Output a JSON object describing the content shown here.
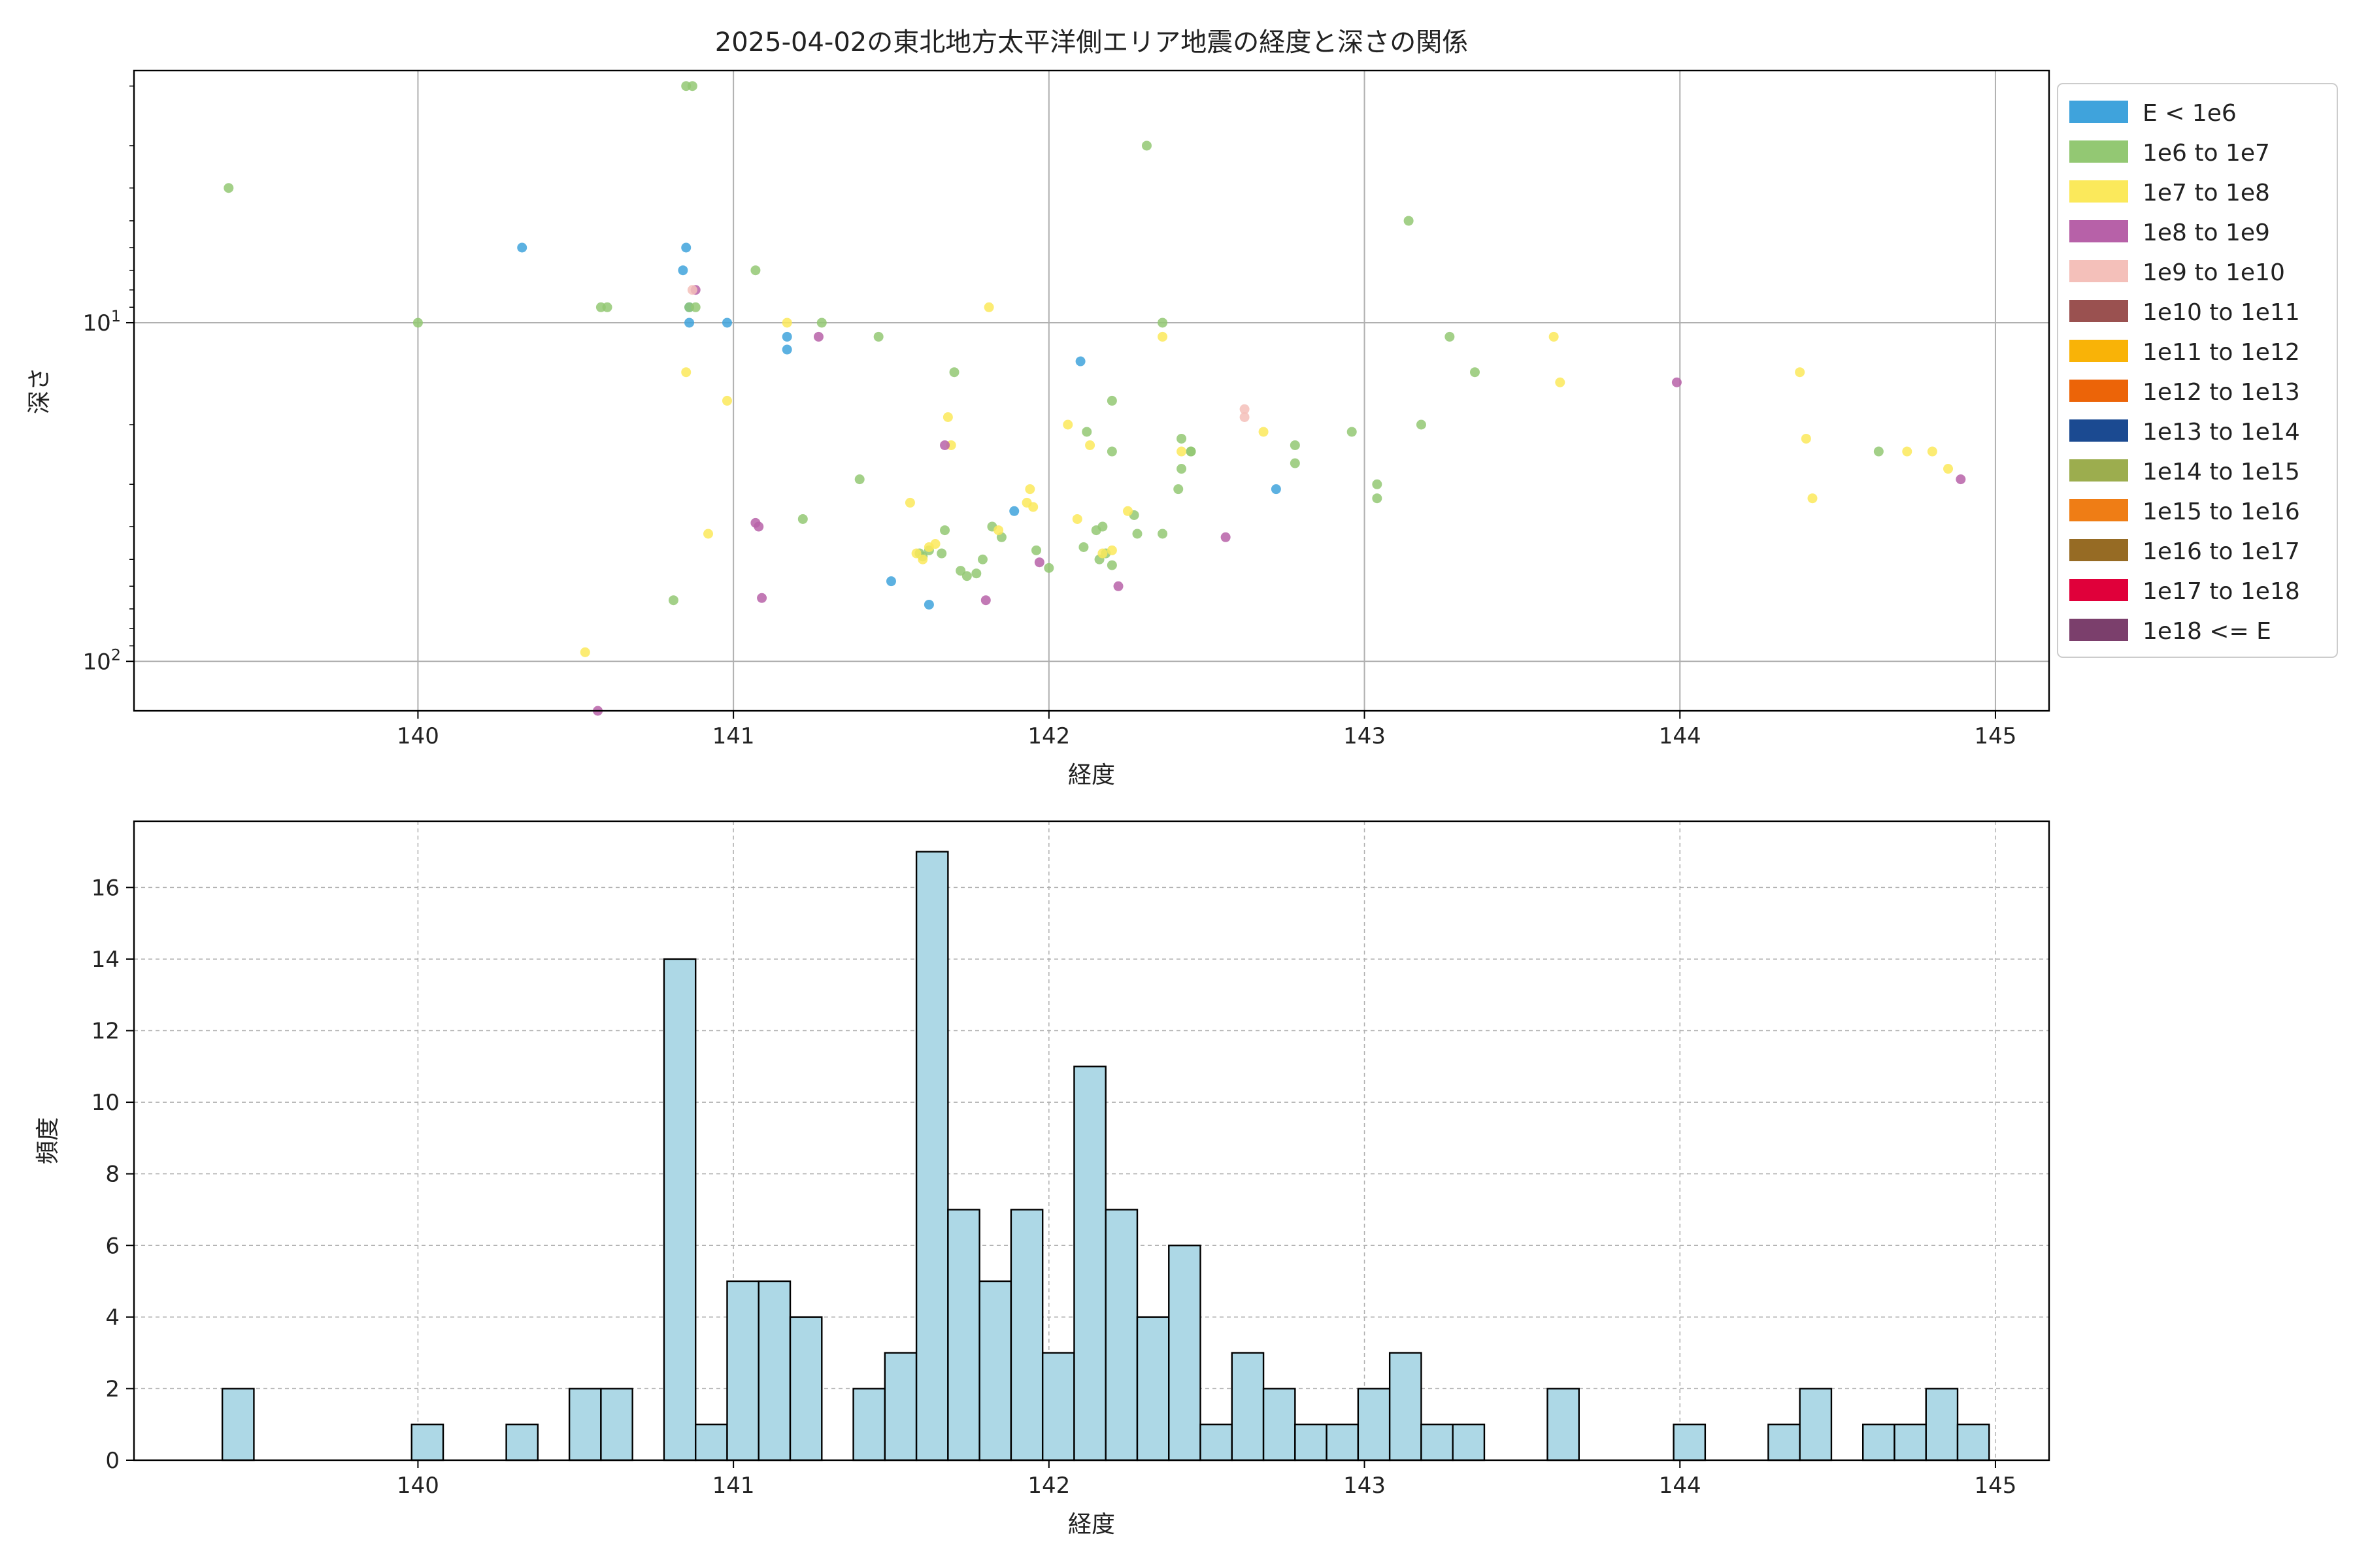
{
  "chart_data": [
    {
      "type": "scatter",
      "title": "2025-04-02の東北地方太平洋側エリア地震の経度と深さの関係",
      "xlabel": "経度",
      "ylabel": "深さ",
      "xlim": [
        139.1,
        145.17
      ],
      "ylim": [
        140,
        1.8
      ],
      "y_scale": "log",
      "y_inverted": true,
      "x_ticks": [
        140,
        141,
        142,
        143,
        144,
        145
      ],
      "y_ticks": [
        {
          "value": 10,
          "label": "10^1"
        },
        {
          "value": 100,
          "label": "10^2"
        }
      ],
      "grid": true,
      "legend_position": "outside-right",
      "legend": [
        {
          "label": "E < 1e6",
          "color": "#3fa3dc"
        },
        {
          "label": "1e6 to 1e7",
          "color": "#93c873"
        },
        {
          "label": "1e7 to 1e8",
          "color": "#fbe95b"
        },
        {
          "label": "1e8 to 1e9",
          "color": "#b761a8"
        },
        {
          "label": "1e9 to 1e10",
          "color": "#f4c0ba"
        },
        {
          "label": "1e10 to 1e11",
          "color": "#9a5150"
        },
        {
          "label": "1e11 to 1e12",
          "color": "#f9b307"
        },
        {
          "label": "1e12 to 1e13",
          "color": "#ec6408"
        },
        {
          "label": "1e13 to 1e14",
          "color": "#1b4a91"
        },
        {
          "label": "1e14 to 1e15",
          "color": "#9cad4e"
        },
        {
          "label": "1e15 to 1e16",
          "color": "#ef7d15"
        },
        {
          "label": "1e16 to 1e17",
          "color": "#966b24"
        },
        {
          "label": "1e17 to 1e18",
          "color": "#e0003a"
        },
        {
          "label": "1e18 <= E",
          "color": "#7b3f6c"
        }
      ],
      "series": [
        {
          "name": "E < 1e6",
          "color": "#3fa3dc",
          "points": [
            [
              140.33,
              6
            ],
            [
              140.85,
              6
            ],
            [
              140.84,
              7
            ],
            [
              140.86,
              9
            ],
            [
              140.86,
              10
            ],
            [
              140.98,
              10
            ],
            [
              141.17,
              11
            ],
            [
              141.17,
              12
            ],
            [
              142.1,
              13
            ],
            [
              141.89,
              36
            ],
            [
              142.72,
              31
            ],
            [
              141.5,
              58
            ],
            [
              141.62,
              68
            ]
          ]
        },
        {
          "name": "1e6 to 1e7",
          "color": "#93c873",
          "points": [
            [
              139.4,
              4
            ],
            [
              140.0,
              10
            ],
            [
              140.58,
              9
            ],
            [
              140.6,
              9
            ],
            [
              140.85,
              2
            ],
            [
              140.87,
              2
            ],
            [
              140.86,
              9
            ],
            [
              140.88,
              9
            ],
            [
              141.07,
              7
            ],
            [
              141.28,
              10
            ],
            [
              141.46,
              11
            ],
            [
              141.7,
              14
            ],
            [
              142.31,
              3
            ],
            [
              142.36,
              10
            ],
            [
              143.14,
              5
            ],
            [
              143.27,
              11
            ],
            [
              143.35,
              14
            ],
            [
              140.81,
              66
            ],
            [
              141.22,
              38
            ],
            [
              141.4,
              29
            ],
            [
              141.67,
              41
            ],
            [
              141.6,
              49
            ],
            [
              141.59,
              48
            ],
            [
              141.62,
              47
            ],
            [
              141.66,
              48
            ],
            [
              141.72,
              54
            ],
            [
              141.74,
              56
            ],
            [
              141.77,
              55
            ],
            [
              141.79,
              50
            ],
            [
              141.82,
              40
            ],
            [
              141.85,
              43
            ],
            [
              141.96,
              47
            ],
            [
              142.0,
              53
            ],
            [
              142.12,
              21
            ],
            [
              142.2,
              17
            ],
            [
              142.15,
              41
            ],
            [
              142.17,
              40
            ],
            [
              142.2,
              24
            ],
            [
              142.11,
              46
            ],
            [
              142.16,
              50
            ],
            [
              142.18,
              48
            ],
            [
              142.2,
              52
            ],
            [
              142.27,
              37
            ],
            [
              142.28,
              42
            ],
            [
              142.36,
              42
            ],
            [
              142.42,
              22
            ],
            [
              142.45,
              24
            ],
            [
              142.45,
              24
            ],
            [
              142.42,
              27
            ],
            [
              142.41,
              31
            ],
            [
              142.78,
              23
            ],
            [
              142.78,
              26
            ],
            [
              142.96,
              21
            ],
            [
              143.04,
              30
            ],
            [
              143.04,
              33
            ],
            [
              143.18,
              20
            ],
            [
              144.63,
              24
            ]
          ]
        },
        {
          "name": "1e7 to 1e8",
          "color": "#fbe95b",
          "points": [
            [
              140.85,
              14
            ],
            [
              140.98,
              17
            ],
            [
              140.92,
              42
            ],
            [
              140.53,
              94
            ],
            [
              141.17,
              10
            ],
            [
              141.81,
              9
            ],
            [
              141.68,
              19
            ],
            [
              141.69,
              23
            ],
            [
              141.56,
              34
            ],
            [
              141.58,
              48
            ],
            [
              141.62,
              46
            ],
            [
              141.64,
              45
            ],
            [
              141.6,
              50
            ],
            [
              141.84,
              41
            ],
            [
              141.93,
              34
            ],
            [
              141.95,
              35
            ],
            [
              141.94,
              31
            ],
            [
              142.06,
              20
            ],
            [
              142.13,
              23
            ],
            [
              142.09,
              38
            ],
            [
              142.17,
              48
            ],
            [
              142.2,
              47
            ],
            [
              142.25,
              36
            ],
            [
              142.36,
              11
            ],
            [
              142.42,
              24
            ],
            [
              142.68,
              21
            ],
            [
              143.6,
              11
            ],
            [
              143.62,
              15
            ],
            [
              144.38,
              14
            ],
            [
              144.4,
              22
            ],
            [
              144.42,
              33
            ],
            [
              144.72,
              24
            ],
            [
              144.8,
              24
            ],
            [
              144.85,
              27
            ]
          ]
        },
        {
          "name": "1e8 to 1e9",
          "color": "#b761a8",
          "points": [
            [
              140.88,
              8
            ],
            [
              141.27,
              11
            ],
            [
              141.07,
              39
            ],
            [
              141.08,
              40
            ],
            [
              141.09,
              65
            ],
            [
              141.67,
              23
            ],
            [
              141.97,
              51
            ],
            [
              141.8,
              66
            ],
            [
              142.22,
              60
            ],
            [
              142.56,
              43
            ],
            [
              143.99,
              15
            ],
            [
              144.89,
              29
            ],
            [
              140.57,
              140
            ]
          ]
        },
        {
          "name": "1e9 to 1e10",
          "color": "#f4c0ba",
          "points": [
            [
              140.87,
              8
            ],
            [
              142.62,
              18
            ],
            [
              142.62,
              19
            ]
          ]
        }
      ]
    },
    {
      "type": "histogram",
      "xlabel": "経度",
      "ylabel": "頻度",
      "xlim": [
        139.1,
        145.17
      ],
      "ylim": [
        0,
        17.85
      ],
      "x_ticks": [
        140,
        141,
        142,
        143,
        144,
        145
      ],
      "y_ticks": [
        0,
        2,
        4,
        6,
        8,
        10,
        12,
        14,
        16
      ],
      "grid": true,
      "bar_color": "#add8e6",
      "bin_start": 139.38,
      "bin_width": 0.1,
      "values": [
        2,
        0,
        0,
        0,
        0,
        0,
        1,
        0,
        0,
        1,
        0,
        2,
        2,
        0,
        14,
        1,
        5,
        5,
        4,
        0,
        2,
        3,
        17,
        7,
        5,
        7,
        3,
        11,
        7,
        4,
        6,
        1,
        3,
        2,
        1,
        1,
        2,
        3,
        1,
        1,
        0,
        0,
        2,
        0,
        0,
        0,
        1,
        0,
        0,
        1,
        2,
        0,
        1,
        1,
        2,
        1
      ]
    }
  ]
}
